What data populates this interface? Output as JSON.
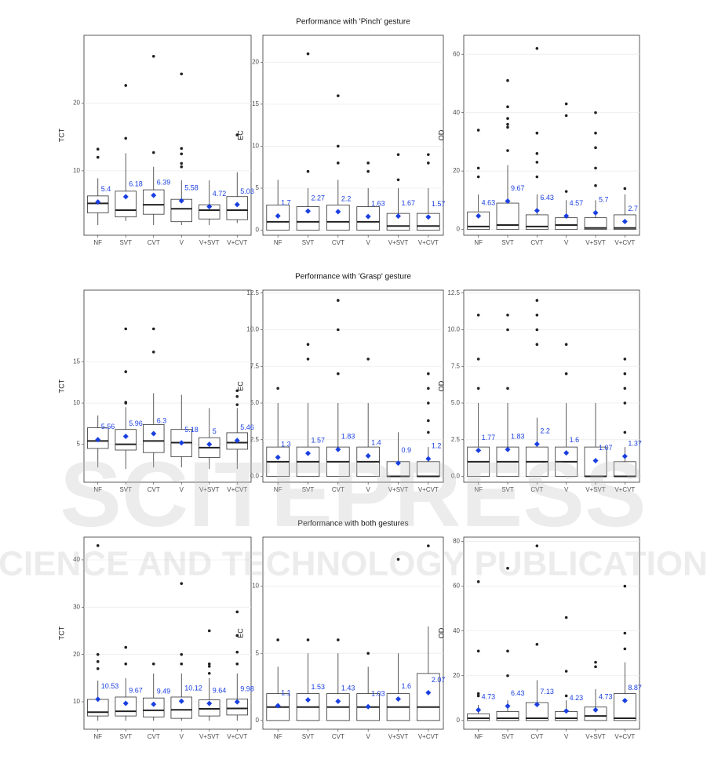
{
  "chart_data": [
    {
      "type": "box",
      "title": "Performance with 'Pinch' gesture",
      "ylabel": "TCT",
      "categories": [
        "NF",
        "SVT",
        "CVT",
        "V",
        "V+SVT",
        "V+CVT"
      ],
      "ylim": [
        0.5,
        30
      ],
      "yticks": [
        10,
        20
      ],
      "grid": true,
      "mean_color": "#1a3fe0",
      "boxes": [
        {
          "whislo": 2,
          "q1": 3.8,
          "med": 5.2,
          "q3": 6.3,
          "whishi": 8.9,
          "fliers": [
            12,
            13.2
          ],
          "mean": 5.4
        },
        {
          "whislo": 2.6,
          "q1": 3.2,
          "med": 4.2,
          "q3": 7,
          "whishi": 12.6,
          "fliers": [
            14.8,
            22.6
          ],
          "mean": 6.18
        },
        {
          "whislo": 2,
          "q1": 3.6,
          "med": 5,
          "q3": 7.2,
          "whishi": 10.6,
          "fliers": [
            12.7,
            26.9
          ],
          "mean": 6.39
        },
        {
          "whislo": 2,
          "q1": 2.5,
          "med": 4.4,
          "q3": 5.8,
          "whishi": 8.6,
          "fliers": [
            10.6,
            11.1,
            12.5,
            13.3,
            24.3
          ],
          "mean": 5.58
        },
        {
          "whislo": 2,
          "q1": 2.9,
          "med": 4.2,
          "q3": 5,
          "whishi": 8.6,
          "fliers": [],
          "mean": 4.72
        },
        {
          "whislo": 2.3,
          "q1": 2.8,
          "med": 4.2,
          "q3": 6.2,
          "whishi": 9.8,
          "fliers": [
            15.3
          ],
          "mean": 5.03
        }
      ]
    },
    {
      "type": "box",
      "ylabel": "EC",
      "categories": [
        "NF",
        "SVT",
        "CVT",
        "V",
        "V+SVT",
        "V+CVT"
      ],
      "ylim": [
        -0.6,
        23.2
      ],
      "yticks": [
        0,
        5,
        10,
        15,
        20
      ],
      "grid": true,
      "mean_color": "#1a3fe0",
      "boxes": [
        {
          "whislo": 0,
          "q1": 0,
          "med": 1,
          "q3": 3,
          "whishi": 6,
          "fliers": [],
          "mean": 1.7
        },
        {
          "whislo": 0,
          "q1": 0,
          "med": 1,
          "q3": 2.8,
          "whishi": 5,
          "fliers": [
            7,
            21
          ],
          "mean": 2.27
        },
        {
          "whislo": 0,
          "q1": 0,
          "med": 1,
          "q3": 3,
          "whishi": 6,
          "fliers": [
            8,
            10,
            16
          ],
          "mean": 2.2
        },
        {
          "whislo": 0,
          "q1": 0,
          "med": 1,
          "q3": 2.8,
          "whishi": 5,
          "fliers": [
            7,
            8
          ],
          "mean": 1.63
        },
        {
          "whislo": 0,
          "q1": 0,
          "med": 0.5,
          "q3": 2,
          "whishi": 5,
          "fliers": [
            6,
            9
          ],
          "mean": 1.67
        },
        {
          "whislo": 0,
          "q1": 0,
          "med": 0.5,
          "q3": 2,
          "whishi": 5,
          "fliers": [
            8,
            9
          ],
          "mean": 1.57
        }
      ]
    },
    {
      "type": "box",
      "ylabel": "OD",
      "categories": [
        "NF",
        "SVT",
        "CVT",
        "V",
        "V+SVT",
        "V+CVT"
      ],
      "ylim": [
        -2,
        66.5
      ],
      "yticks": [
        0,
        20,
        40,
        60
      ],
      "grid": true,
      "mean_color": "#1a3fe0",
      "boxes": [
        {
          "whislo": 0,
          "q1": 0,
          "med": 1,
          "q3": 6,
          "whishi": 12,
          "fliers": [
            18,
            21,
            34
          ],
          "mean": 4.63
        },
        {
          "whislo": 0,
          "q1": 0,
          "med": 1.5,
          "q3": 9,
          "whishi": 22,
          "fliers": [
            27,
            35,
            36,
            38,
            42,
            51
          ],
          "mean": 9.67
        },
        {
          "whislo": 0,
          "q1": 0,
          "med": 1,
          "q3": 5,
          "whishi": 12,
          "fliers": [
            18,
            23,
            26,
            33,
            62
          ],
          "mean": 6.43
        },
        {
          "whislo": 0,
          "q1": 0,
          "med": 1.5,
          "q3": 4,
          "whishi": 10,
          "fliers": [
            13,
            39,
            43
          ],
          "mean": 4.57
        },
        {
          "whislo": 0,
          "q1": 0,
          "med": 0.5,
          "q3": 4,
          "whishi": 10,
          "fliers": [
            15,
            21,
            28,
            33,
            40
          ],
          "mean": 5.7
        },
        {
          "whislo": 0,
          "q1": 0,
          "med": 0.5,
          "q3": 5,
          "whishi": 12,
          "fliers": [
            14
          ],
          "mean": 2.7
        }
      ]
    },
    {
      "type": "box",
      "title": "Performance with 'Grasp' gesture",
      "ylabel": "TCT",
      "categories": [
        "NF",
        "SVT",
        "CVT",
        "V",
        "V+SVT",
        "V+CVT"
      ],
      "ylim": [
        0.4,
        23.7
      ],
      "yticks": [
        5,
        10,
        15
      ],
      "grid": true,
      "mean_color": "#1a3fe0",
      "boxes": [
        {
          "whislo": 2.2,
          "q1": 4.5,
          "med": 5.4,
          "q3": 7,
          "whishi": 8.5,
          "fliers": [],
          "mean": 5.56
        },
        {
          "whislo": 2,
          "q1": 4.3,
          "med": 5,
          "q3": 6.8,
          "whishi": 9.5,
          "fliers": [
            10,
            10.1,
            13.8,
            19
          ],
          "mean": 5.96
        },
        {
          "whislo": 2.2,
          "q1": 4,
          "med": 5.4,
          "q3": 7.4,
          "whishi": 11.2,
          "fliers": [
            16.2,
            19
          ],
          "mean": 6.3
        },
        {
          "whislo": 2.2,
          "q1": 3.5,
          "med": 5.2,
          "q3": 6.8,
          "whishi": 11,
          "fliers": [],
          "mean": 5.18
        },
        {
          "whislo": 2,
          "q1": 3.4,
          "med": 4.6,
          "q3": 5.8,
          "whishi": 9.4,
          "fliers": [],
          "mean": 5
        },
        {
          "whislo": 2,
          "q1": 4.4,
          "med": 5.2,
          "q3": 6.4,
          "whishi": 9.4,
          "fliers": [
            9.8,
            10.8,
            11.5
          ],
          "mean": 5.46
        }
      ]
    },
    {
      "type": "box",
      "ylabel": "EC",
      "categories": [
        "NF",
        "SVT",
        "CVT",
        "V",
        "V+SVT",
        "V+CVT"
      ],
      "ylim": [
        -0.4,
        12.7
      ],
      "yticks": [
        {
          "value": 0,
          "label": "0.0"
        },
        2.5,
        {
          "value": 5,
          "label": "5.0"
        },
        7.5,
        {
          "value": 10,
          "label": "10.0"
        },
        12.5
      ],
      "grid": true,
      "mean_color": "#1a3fe0",
      "boxes": [
        {
          "whislo": 0,
          "q1": 0,
          "med": 1,
          "q3": 2,
          "whishi": 5,
          "fliers": [
            6
          ],
          "mean": 1.3
        },
        {
          "whislo": 0,
          "q1": 0,
          "med": 1,
          "q3": 2,
          "whishi": 5,
          "fliers": [
            8,
            9
          ],
          "mean": 1.57
        },
        {
          "whislo": 0,
          "q1": 0,
          "med": 1,
          "q3": 2,
          "whishi": 5,
          "fliers": [
            7,
            10,
            12
          ],
          "mean": 1.83
        },
        {
          "whislo": 0,
          "q1": 0,
          "med": 1,
          "q3": 2,
          "whishi": 5,
          "fliers": [
            8
          ],
          "mean": 1.4
        },
        {
          "whislo": 0,
          "q1": 0,
          "med": 0,
          "q3": 1,
          "whishi": 3,
          "fliers": [],
          "mean": 0.9
        },
        {
          "whislo": 0,
          "q1": 0,
          "med": 0,
          "q3": 1,
          "whishi": 2,
          "fliers": [
            3,
            3.8,
            5,
            6,
            7
          ],
          "mean": 1.2
        }
      ]
    },
    {
      "type": "box",
      "ylabel": "OD",
      "categories": [
        "NF",
        "SVT",
        "CVT",
        "V",
        "V+SVT",
        "V+CVT"
      ],
      "ylim": [
        -0.4,
        12.7
      ],
      "yticks": [
        {
          "value": 0,
          "label": "0.0"
        },
        2.5,
        {
          "value": 5,
          "label": "5.0"
        },
        7.5,
        {
          "value": 10,
          "label": "10.0"
        },
        12.5
      ],
      "grid": true,
      "mean_color": "#1a3fe0",
      "boxes": [
        {
          "whislo": 0,
          "q1": 0,
          "med": 1,
          "q3": 2,
          "whishi": 5,
          "fliers": [
            6,
            8,
            11
          ],
          "mean": 1.77
        },
        {
          "whislo": 0,
          "q1": 0,
          "med": 1,
          "q3": 2,
          "whishi": 5,
          "fliers": [
            6,
            10,
            11
          ],
          "mean": 1.83
        },
        {
          "whislo": 0,
          "q1": 0,
          "med": 1,
          "q3": 2,
          "whishi": 4,
          "fliers": [
            9,
            10,
            11,
            12
          ],
          "mean": 2.2
        },
        {
          "whislo": 0,
          "q1": 0,
          "med": 1,
          "q3": 2,
          "whishi": 5,
          "fliers": [
            7,
            9
          ],
          "mean": 1.6
        },
        {
          "whislo": 0,
          "q1": 0,
          "med": 0,
          "q3": 2,
          "whishi": 5,
          "fliers": [],
          "mean": 1.07
        },
        {
          "whislo": 0,
          "q1": 0,
          "med": 0,
          "q3": 1,
          "whishi": 2,
          "fliers": [
            3,
            5,
            6,
            7,
            8
          ],
          "mean": 1.37
        }
      ]
    },
    {
      "type": "box",
      "title": "Performance with both gestures",
      "ylabel": "TCT",
      "categories": [
        "NF",
        "SVT",
        "CVT",
        "V",
        "V+SVT",
        "V+CVT"
      ],
      "ylim": [
        4.2,
        44.8
      ],
      "yticks": [
        10,
        20,
        30,
        40
      ],
      "grid": true,
      "mean_color": "#1a3fe0",
      "boxes": [
        {
          "whislo": 6,
          "q1": 7,
          "med": 7.8,
          "q3": 10.5,
          "whishi": 14.5,
          "fliers": [
            17,
            18.5,
            20,
            43
          ],
          "mean": 10.53
        },
        {
          "whislo": 6,
          "q1": 7,
          "med": 8,
          "q3": 11,
          "whishi": 15,
          "fliers": [
            18,
            21.5
          ],
          "mean": 9.67
        },
        {
          "whislo": 6,
          "q1": 6.8,
          "med": 8.2,
          "q3": 10.8,
          "whishi": 16,
          "fliers": [
            18
          ],
          "mean": 9.49
        },
        {
          "whislo": 6,
          "q1": 6.5,
          "med": 8.3,
          "q3": 11,
          "whishi": 16,
          "fliers": [
            18,
            20,
            35
          ],
          "mean": 10.12
        },
        {
          "whislo": 6,
          "q1": 7,
          "med": 8.5,
          "q3": 10.4,
          "whishi": 15,
          "fliers": [
            16,
            17.5,
            18,
            25
          ],
          "mean": 9.64
        },
        {
          "whislo": 6,
          "q1": 7.2,
          "med": 8.6,
          "q3": 10.6,
          "whishi": 16,
          "fliers": [
            18,
            20.5,
            24,
            29
          ],
          "mean": 9.98
        }
      ]
    },
    {
      "type": "box",
      "ylabel": "EC",
      "categories": [
        "NF",
        "SVT",
        "CVT",
        "V",
        "V+SVT",
        "V+CVT"
      ],
      "ylim": [
        -0.65,
        13.65
      ],
      "yticks": [
        0,
        5,
        10
      ],
      "grid": true,
      "mean_color": "#1a3fe0",
      "boxes": [
        {
          "whislo": 0,
          "q1": 0,
          "med": 1,
          "q3": 2,
          "whishi": 4,
          "fliers": [
            6
          ],
          "mean": 1.1
        },
        {
          "whislo": 0,
          "q1": 0,
          "med": 1,
          "q3": 2,
          "whishi": 5,
          "fliers": [
            6
          ],
          "mean": 1.53
        },
        {
          "whislo": 0,
          "q1": 0,
          "med": 1,
          "q3": 2,
          "whishi": 5,
          "fliers": [
            6
          ],
          "mean": 1.43
        },
        {
          "whislo": 0,
          "q1": 0,
          "med": 1,
          "q3": 2,
          "whishi": 4,
          "fliers": [
            5
          ],
          "mean": 1.03
        },
        {
          "whislo": 0,
          "q1": 0,
          "med": 1,
          "q3": 2,
          "whishi": 5,
          "fliers": [
            12
          ],
          "mean": 1.6
        },
        {
          "whislo": 0,
          "q1": 0,
          "med": 1,
          "q3": 3.5,
          "whishi": 7,
          "fliers": [
            13
          ],
          "mean": 2.07
        }
      ]
    },
    {
      "type": "box",
      "ylabel": "OD",
      "categories": [
        "NF",
        "SVT",
        "CVT",
        "V",
        "V+SVT",
        "V+CVT"
      ],
      "ylim": [
        -3.9,
        81.9
      ],
      "yticks": [
        0,
        20,
        40,
        60,
        80
      ],
      "grid": true,
      "mean_color": "#1a3fe0",
      "boxes": [
        {
          "whislo": 0,
          "q1": 0,
          "med": 1,
          "q3": 3,
          "whishi": 7,
          "fliers": [
            11,
            12,
            31,
            62
          ],
          "mean": 4.73
        },
        {
          "whislo": 0,
          "q1": 0,
          "med": 1,
          "q3": 4,
          "whishi": 9,
          "fliers": [
            20,
            31,
            68
          ],
          "mean": 6.43
        },
        {
          "whislo": 0,
          "q1": 0,
          "med": 1,
          "q3": 8,
          "whishi": 18,
          "fliers": [
            34,
            78
          ],
          "mean": 7.13
        },
        {
          "whislo": 0,
          "q1": 0,
          "med": 1,
          "q3": 4,
          "whishi": 9,
          "fliers": [
            11,
            22,
            46
          ],
          "mean": 4.23
        },
        {
          "whislo": 0,
          "q1": 0,
          "med": 2,
          "q3": 6,
          "whishi": 14,
          "fliers": [
            24,
            26
          ],
          "mean": 4.73
        },
        {
          "whislo": 0,
          "q1": 0,
          "med": 1,
          "q3": 12,
          "whishi": 26,
          "fliers": [
            32,
            39,
            60
          ],
          "mean": 8.87
        }
      ]
    }
  ],
  "watermark": {
    "title": "SCITEPRESS",
    "subtitle": "SCIENCE AND TECHNOLOGY PUBLICATIONS"
  }
}
